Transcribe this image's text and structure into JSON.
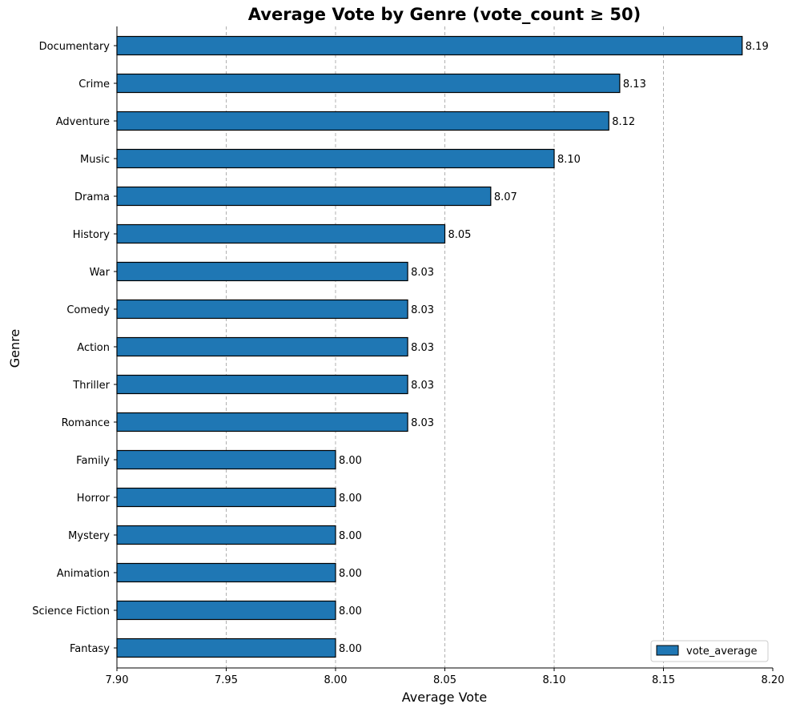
{
  "chart_data": {
    "type": "bar",
    "orientation": "horizontal",
    "title": "Average Vote by Genre (vote_count ≥ 50)",
    "xlabel": "Average Vote",
    "ylabel": "Genre",
    "xlim": [
      7.9,
      8.2
    ],
    "xticks": [
      "7.90",
      "7.95",
      "8.00",
      "8.05",
      "8.10",
      "8.15",
      "8.20"
    ],
    "xtick_values": [
      7.9,
      7.95,
      8.0,
      8.05,
      8.1,
      8.15,
      8.2
    ],
    "categories": [
      "Documentary",
      "Crime",
      "Adventure",
      "Music",
      "Drama",
      "History",
      "War",
      "Comedy",
      "Action",
      "Thriller",
      "Romance",
      "Family",
      "Horror",
      "Mystery",
      "Animation",
      "Science Fiction",
      "Fantasy"
    ],
    "values": [
      8.186,
      8.13,
      8.125,
      8.1,
      8.071,
      8.05,
      8.033,
      8.033,
      8.033,
      8.033,
      8.033,
      8.0,
      8.0,
      8.0,
      8.0,
      8.0,
      8.0
    ],
    "data_labels": [
      "8.19",
      "8.13",
      "8.12",
      "8.10",
      "8.07",
      "8.05",
      "8.03",
      "8.03",
      "8.03",
      "8.03",
      "8.03",
      "8.00",
      "8.00",
      "8.00",
      "8.00",
      "8.00",
      "8.00"
    ],
    "series": [
      {
        "name": "vote_average",
        "color": "#1f77b4"
      }
    ],
    "legend": {
      "position": "lower-right",
      "entries": [
        "vote_average"
      ]
    },
    "grid": {
      "x": true,
      "y": false,
      "style": "dashed",
      "color": "#b0b0b0"
    },
    "bar_color": "#1f77b4",
    "bar_edge_color": "#000000"
  }
}
